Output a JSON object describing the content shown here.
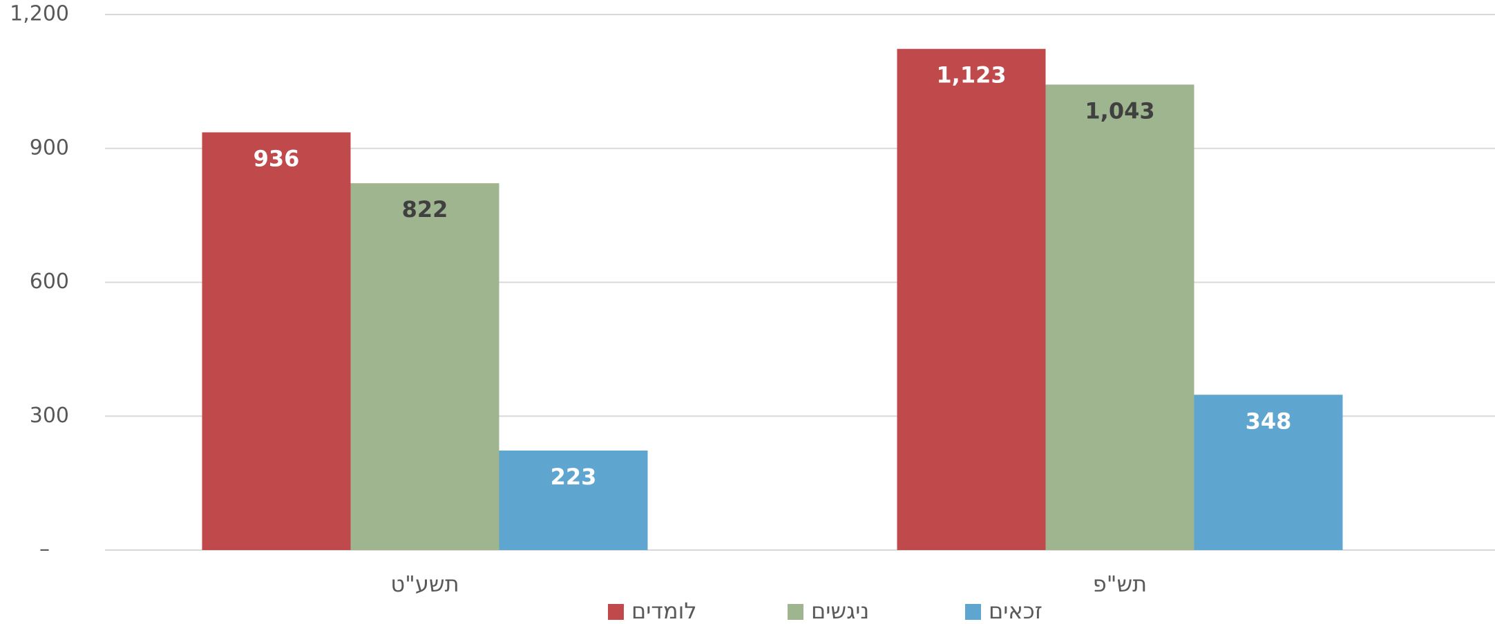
{
  "chart_data": {
    "type": "bar",
    "categories": [
      "תשע\"ט",
      "תש\"פ"
    ],
    "series": [
      {
        "name": "לומדים",
        "color": "#c0494b",
        "values": [
          936,
          1123
        ],
        "value_labels": [
          "936",
          "1,123"
        ],
        "label_color": "#ffffff"
      },
      {
        "name": "ניגשים",
        "color": "#9fb58f",
        "values": [
          822,
          1043
        ],
        "value_labels": [
          "822",
          "1,043"
        ],
        "label_color": "#404040"
      },
      {
        "name": "זכאים",
        "color": "#5ea5cf",
        "values": [
          223,
          348
        ],
        "value_labels": [
          "223",
          "348"
        ],
        "label_color": "#ffffff"
      }
    ],
    "ylim": [
      0,
      1200
    ],
    "yticks": [
      {
        "value": 0,
        "label": "–"
      },
      300,
      600,
      900,
      {
        "value": 1200,
        "label": "1,200"
      }
    ],
    "grid": true,
    "legend": "bottom"
  }
}
